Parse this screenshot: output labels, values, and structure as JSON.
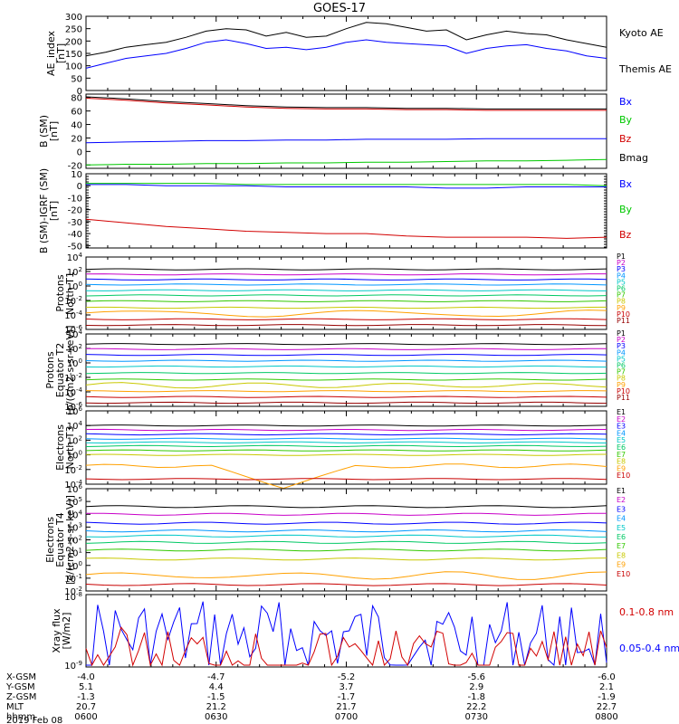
{
  "title": "GOES-17",
  "date_label": "2019 Feb 08",
  "ephemeris": {
    "labels": [
      "X-GSM",
      "Y-GSM",
      "Z-GSM",
      "MLT",
      "hhmm"
    ],
    "columns": [
      {
        "x": "-4.0",
        "y": "5.1",
        "z": "-1.3",
        "mlt": "20.7",
        "hhmm": "0600"
      },
      {
        "x": "-4.7",
        "y": "4.4",
        "z": "-1.5",
        "mlt": "21.2",
        "hhmm": "0630"
      },
      {
        "x": "-5.2",
        "y": "3.7",
        "z": "-1.7",
        "mlt": "21.7",
        "hhmm": "0700"
      },
      {
        "x": "-5.6",
        "y": "2.9",
        "z": "-1.8",
        "mlt": "22.2",
        "hhmm": "0730"
      },
      {
        "x": "-6.0",
        "y": "2.1",
        "z": "-1.9",
        "mlt": "22.7",
        "hhmm": "0800"
      }
    ]
  },
  "colors": {
    "black": "#000000",
    "blue": "#0000ff",
    "green": "#00c800",
    "red": "#d20000",
    "p_colors": [
      "#000000",
      "#c800c8",
      "#0000ff",
      "#0096ff",
      "#00c8c8",
      "#00c864",
      "#32c800",
      "#c8c800",
      "#ffa000",
      "#c80000",
      "#960000"
    ]
  },
  "chart_data": [
    {
      "type": "line",
      "ylabel": "AE_index [nT]",
      "ylim": [
        0,
        300
      ],
      "yticks": [
        "0",
        "50",
        "100",
        "150",
        "200",
        "250",
        "300"
      ],
      "x_range": [
        "0600",
        "0800"
      ],
      "series": [
        {
          "name": "Kyoto AE",
          "color": "#000000",
          "values": [
            140,
            155,
            175,
            185,
            195,
            215,
            240,
            250,
            245,
            220,
            235,
            215,
            220,
            250,
            275,
            270,
            255,
            240,
            245,
            205,
            225,
            240,
            230,
            225,
            205,
            190,
            175
          ]
        },
        {
          "name": "Themis AE",
          "color": "#0000ff",
          "values": [
            90,
            110,
            130,
            140,
            150,
            170,
            195,
            205,
            190,
            170,
            175,
            165,
            175,
            195,
            205,
            195,
            190,
            185,
            180,
            150,
            170,
            180,
            185,
            170,
            160,
            140,
            130
          ]
        }
      ]
    },
    {
      "type": "line",
      "ylabel": "B (SM) [nT]",
      "ylim": [
        -25,
        85
      ],
      "yticks": [
        "-20",
        "0",
        "20",
        "40",
        "60",
        "80"
      ],
      "series": [
        {
          "name": "Bx",
          "color": "#0000ff",
          "values": [
            13,
            14,
            15,
            16,
            16,
            17,
            17,
            18,
            18,
            18,
            19,
            19,
            19,
            19
          ]
        },
        {
          "name": "By",
          "color": "#00c800",
          "values": [
            -20,
            -19,
            -19,
            -18,
            -18,
            -17,
            -17,
            -16,
            -16,
            -15,
            -14,
            -14,
            -13,
            -12
          ]
        },
        {
          "name": "Bz",
          "color": "#d20000",
          "values": [
            79,
            76,
            72,
            69,
            66,
            64,
            63,
            63,
            62,
            62,
            61,
            61,
            61,
            61
          ]
        },
        {
          "name": "Bmag",
          "color": "#000000",
          "values": [
            81,
            78,
            74,
            71,
            68,
            66,
            65,
            65,
            64,
            64,
            63,
            63,
            63,
            63
          ]
        }
      ]
    },
    {
      "type": "line",
      "ylabel": "B (SM)-IGRF (SM) [nT]",
      "ylim": [
        -52,
        10
      ],
      "yticks": [
        "-50",
        "-40",
        "-30",
        "-20",
        "-10",
        "0",
        "10"
      ],
      "series": [
        {
          "name": "Bx",
          "color": "#0000ff",
          "values": [
            1,
            1,
            0,
            0,
            0,
            -1,
            -1,
            -1,
            -1,
            -2,
            -2,
            -1,
            -1,
            -1
          ]
        },
        {
          "name": "By",
          "color": "#00c800",
          "values": [
            2,
            2,
            2,
            2,
            1,
            1,
            1,
            1,
            1,
            1,
            1,
            1,
            1,
            0
          ]
        },
        {
          "name": "Bz",
          "color": "#d20000",
          "values": [
            -28,
            -31,
            -34,
            -36,
            -38,
            -39,
            -40,
            -40,
            -42,
            -43,
            -43,
            -43,
            -44,
            -43
          ]
        }
      ]
    },
    {
      "type": "line",
      "ylabel": "Protons North T1",
      "log": true,
      "ylim_exp": [
        -6,
        4
      ],
      "yticks": [
        "10-6",
        "10-4",
        "10-2",
        "100",
        "102",
        "104"
      ],
      "channels": [
        "P1",
        "P2",
        "P3",
        "P4",
        "P5",
        "P6",
        "P7",
        "P8",
        "P9",
        "P10",
        "P11"
      ],
      "levels_exp": [
        2.3,
        1.6,
        0.9,
        0.2,
        -0.6,
        -1.3,
        -2.1,
        -3.0,
        -3.8,
        -4.6,
        -5.4
      ]
    },
    {
      "type": "line",
      "ylabel": "Protons Equator T2 [p/(cm2-s-sr-keV)]",
      "log": true,
      "ylim_exp": [
        -6,
        4
      ],
      "yticks": [
        "10-6",
        "10-4",
        "10-2",
        "100",
        "102",
        "104"
      ],
      "channels": [
        "P1",
        "P2",
        "P3",
        "P4",
        "P5",
        "P6",
        "P7",
        "P8",
        "P9",
        "P10",
        "P11"
      ],
      "levels_exp": [
        2.6,
        1.9,
        1.1,
        0.3,
        -0.5,
        -1.4,
        -2.3,
        -3.1,
        -3.9,
        -4.7,
        -5.5
      ]
    },
    {
      "type": "line",
      "ylabel": "Electrons North T3",
      "log": true,
      "ylim_exp": [
        -4,
        6
      ],
      "yticks": [
        "10-4",
        "10-2",
        "100",
        "102",
        "104",
        "106"
      ],
      "channels": [
        "E1",
        "E2",
        "E3",
        "E4",
        "E5",
        "E6",
        "E7",
        "E8",
        "E9",
        "E10"
      ],
      "levels_exp": [
        4.0,
        3.4,
        2.8,
        2.2,
        1.7,
        1.2,
        0.6,
        0.0,
        -1.5,
        -3.3
      ]
    },
    {
      "type": "line",
      "ylabel": "Electrons Equator T4 [e/(cm2-s-sr-keV)]",
      "log": true,
      "ylim_exp": [
        -2,
        6
      ],
      "yticks": [
        "10-2",
        "10-1",
        "100",
        "101",
        "102",
        "103",
        "104",
        "105",
        "106"
      ],
      "channels": [
        "E1",
        "E2",
        "E3",
        "E4",
        "E5",
        "E6",
        "E7",
        "E8",
        "E9",
        "E10"
      ],
      "levels_exp": [
        4.6,
        4.0,
        3.3,
        2.7,
        2.3,
        1.8,
        1.2,
        0.5,
        -0.8,
        -1.5
      ]
    },
    {
      "type": "line",
      "ylabel": "Xray flux [W/m2]",
      "log": true,
      "ylim_exp": [
        -9,
        -8
      ],
      "yticks": [
        "10-9",
        "10-8"
      ],
      "series": [
        {
          "name": "0.1-0.8 nm",
          "color": "#d20000"
        },
        {
          "name": "0.05-0.4 nm",
          "color": "#0000ff"
        }
      ]
    }
  ]
}
